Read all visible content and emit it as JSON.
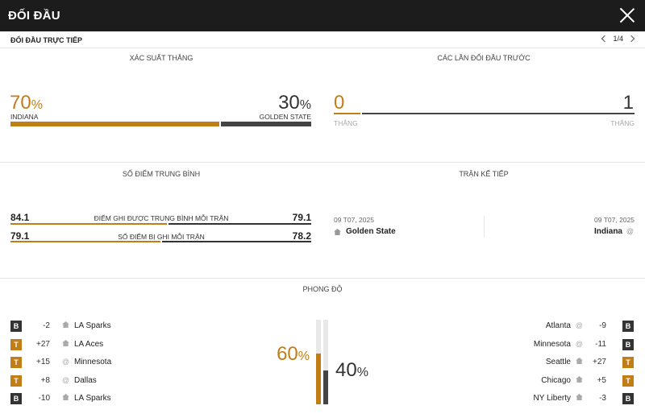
{
  "header": {
    "title": "ĐỐI ĐẦU"
  },
  "subheader": {
    "label": "ĐỐI ĐẦU TRỰC TIẾP",
    "pager": "1/4"
  },
  "win_prob": {
    "title": "XÁC SUẤT THẮNG",
    "home": {
      "value": "70",
      "pct": "%",
      "team": "INDIANA",
      "fraction": 0.7
    },
    "away": {
      "value": "30",
      "pct": "%",
      "team": "GOLDEN STATE",
      "fraction": 0.3
    }
  },
  "h2h": {
    "title": "CÁC LẦN ĐỐI ĐẦU TRƯỚC",
    "home": {
      "wins": "0",
      "label": "THẮNG"
    },
    "away": {
      "wins": "1",
      "label": "THẮNG"
    }
  },
  "avg_points": {
    "title": "SỐ ĐIỂM TRUNG BÌNH",
    "rows": [
      {
        "home": "84.1",
        "label": "ĐIỂM GHI ĐƯỢC TRUNG BÌNH MỖI TRẬN",
        "away": "79.1"
      },
      {
        "home": "79.1",
        "label": "SỐ ĐIỂM BỊ GHI MỖI TRẬN",
        "away": "78.2"
      }
    ]
  },
  "next_match": {
    "title": "TRẬN KẾ TIẾP",
    "home": {
      "date": "09 T07, 2025",
      "team": "Golden State"
    },
    "away": {
      "date": "09 T07, 2025",
      "team": "Indiana"
    },
    "at_symbol": "@"
  },
  "form": {
    "title": "PHONG ĐỘ",
    "home_pct": "60",
    "away_pct": "40",
    "pct_sign": "%",
    "home_fraction": 0.6,
    "away_fraction": 0.4,
    "home_rows": [
      {
        "result": "B",
        "diff": "-2",
        "venue": "home",
        "team": "LA Sparks"
      },
      {
        "result": "T",
        "diff": "+27",
        "venue": "home",
        "team": "LA Aces"
      },
      {
        "result": "T",
        "diff": "+15",
        "venue": "away",
        "team": "Minnesota"
      },
      {
        "result": "T",
        "diff": "+8",
        "venue": "away",
        "team": "Dallas"
      },
      {
        "result": "B",
        "diff": "-10",
        "venue": "home",
        "team": "LA Sparks"
      }
    ],
    "away_rows": [
      {
        "result": "B",
        "diff": "-9",
        "venue": "away",
        "team": "Atlanta"
      },
      {
        "result": "B",
        "diff": "-11",
        "venue": "away",
        "team": "Minnesota"
      },
      {
        "result": "T",
        "diff": "+27",
        "venue": "home",
        "team": "Seattle"
      },
      {
        "result": "T",
        "diff": "+5",
        "venue": "home",
        "team": "Chicago"
      },
      {
        "result": "B",
        "diff": "-3",
        "venue": "home",
        "team": "NY Liberty"
      }
    ]
  },
  "colors": {
    "accent": "#c17d16",
    "dark": "#333333",
    "header_bg": "#1c1c1c"
  }
}
